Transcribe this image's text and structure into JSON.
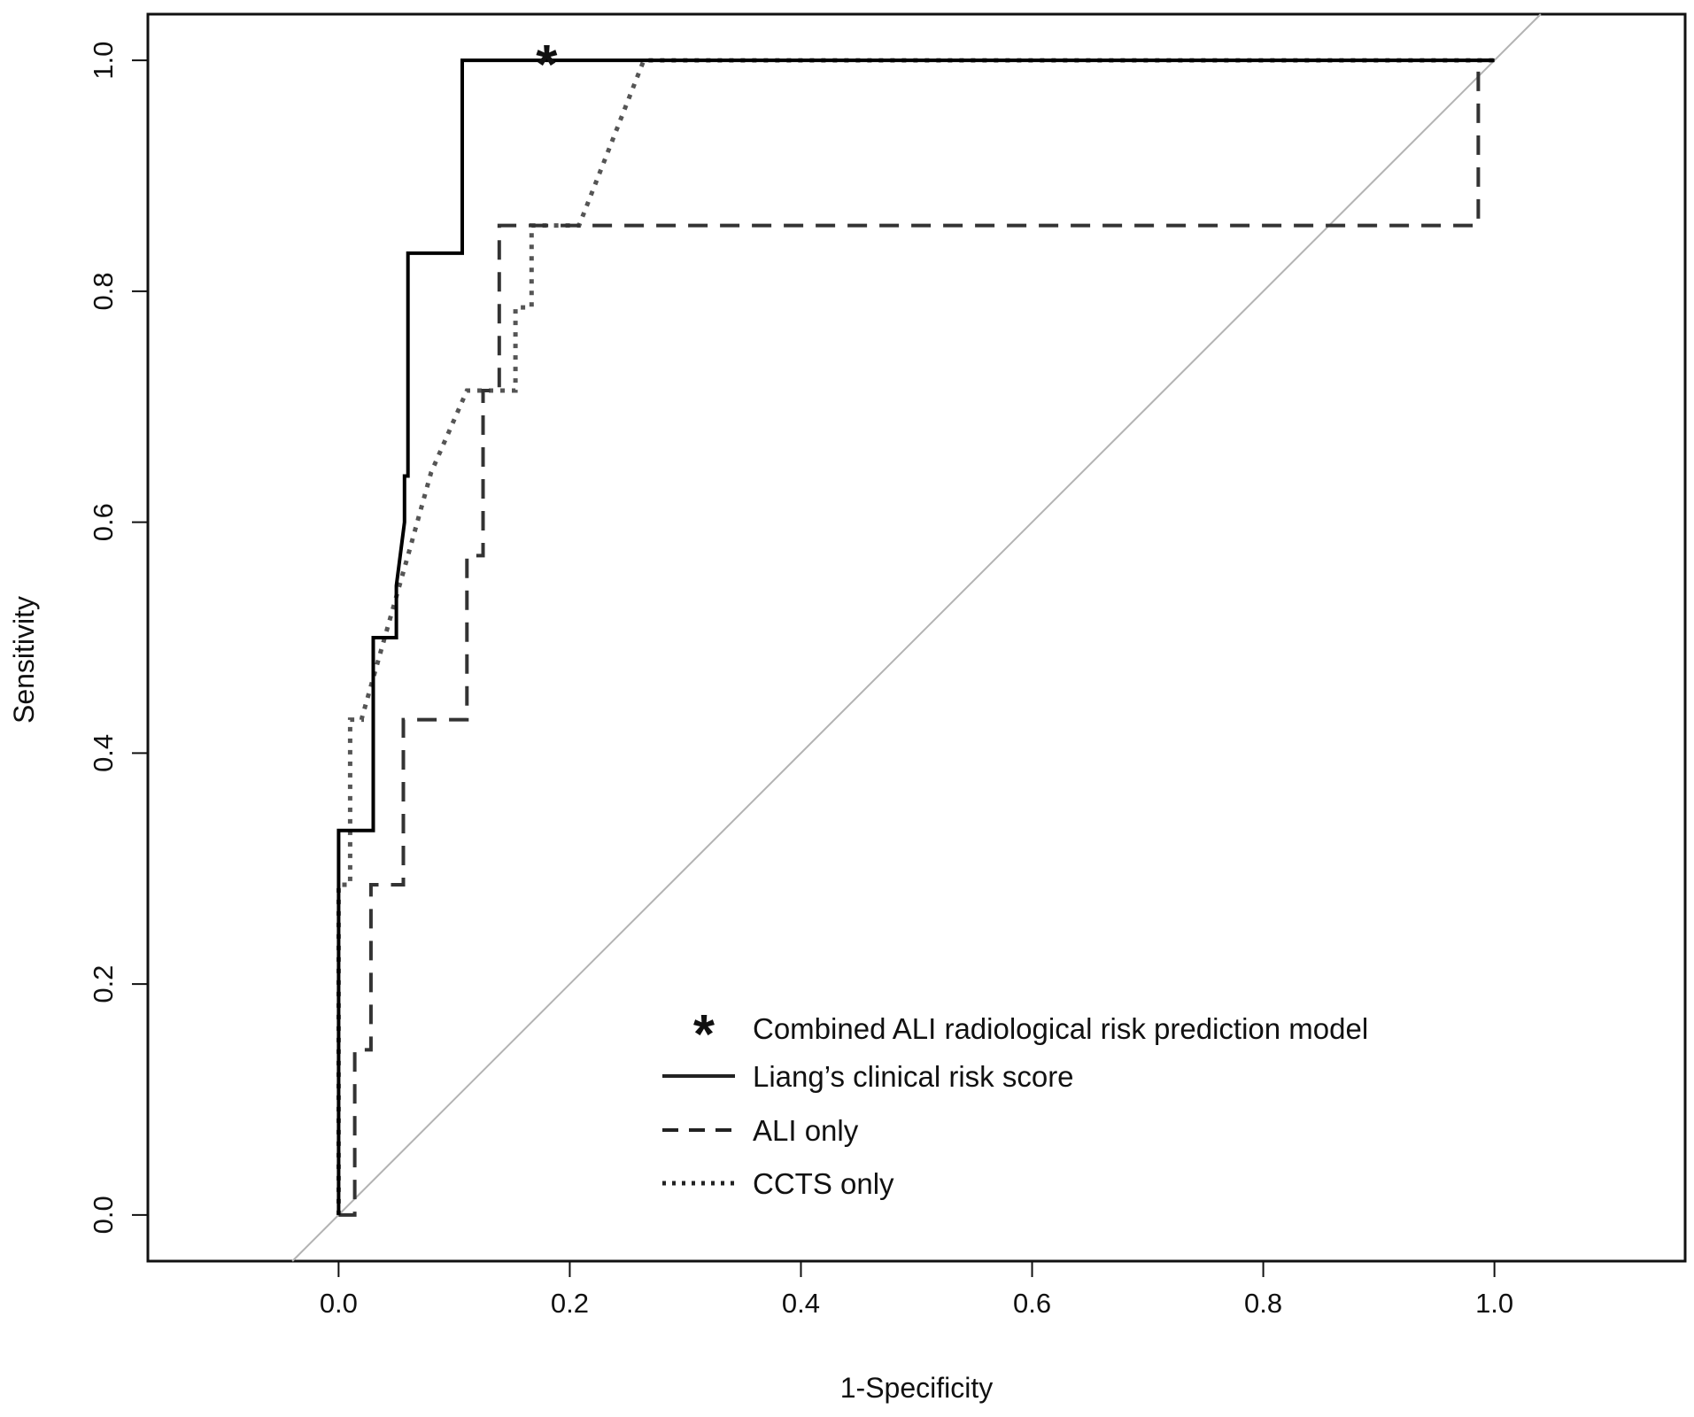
{
  "chart_data": {
    "type": "line",
    "title": "",
    "xlabel": "1-Specificity",
    "ylabel": "Sensitivity",
    "xlim": [
      -0.165,
      1.165
    ],
    "ylim": [
      -0.04,
      1.04
    ],
    "xticks": [
      0.0,
      0.2,
      0.4,
      0.6,
      0.8,
      1.0
    ],
    "yticks": [
      0.0,
      0.2,
      0.4,
      0.6,
      0.8,
      1.0
    ],
    "xtick_labels": [
      "0.0",
      "0.2",
      "0.4",
      "0.6",
      "0.8",
      "1.0"
    ],
    "ytick_labels": [
      "0.0",
      "0.2",
      "0.4",
      "0.6",
      "0.8",
      "1.0"
    ],
    "grid": false,
    "legend_position": "bottom-right",
    "reference_line": {
      "x": [
        -0.04,
        1.04
      ],
      "y": [
        -0.04,
        1.04
      ],
      "color": "#b3b3b3"
    },
    "series": [
      {
        "name": "Liang’s clinical risk score",
        "style": "solid",
        "color": "#000000",
        "x": [
          0.0,
          0.0,
          0.03,
          0.03,
          0.05,
          0.05,
          0.057,
          0.057,
          0.06,
          0.06,
          0.107,
          0.107,
          1.0
        ],
        "y": [
          0.0,
          0.333,
          0.333,
          0.5,
          0.5,
          0.545,
          0.6,
          0.64,
          0.64,
          0.833,
          0.833,
          1.0,
          1.0
        ]
      },
      {
        "name": "ALI only",
        "style": "dashed",
        "color": "#333333",
        "x": [
          0.0,
          0.014,
          0.014,
          0.028,
          0.028,
          0.056,
          0.056,
          0.111,
          0.111,
          0.125,
          0.125,
          0.139,
          0.139,
          0.986,
          0.986,
          1.0
        ],
        "y": [
          0.0,
          0.0,
          0.143,
          0.143,
          0.286,
          0.286,
          0.429,
          0.429,
          0.571,
          0.571,
          0.714,
          0.714,
          0.857,
          0.857,
          1.0,
          1.0
        ]
      },
      {
        "name": "CCTS only",
        "style": "dotted",
        "color": "#555555",
        "x": [
          0.0,
          0.0,
          0.01,
          0.01,
          0.02,
          0.02,
          0.06,
          0.08,
          0.111,
          0.153,
          0.153,
          0.167,
          0.167,
          0.208,
          0.264,
          1.0
        ],
        "y": [
          0.0,
          0.286,
          0.286,
          0.429,
          0.429,
          0.43,
          0.571,
          0.643,
          0.714,
          0.714,
          0.786,
          0.786,
          0.857,
          0.857,
          1.0,
          1.0
        ]
      }
    ],
    "markers": [
      {
        "name": "Combined ALI radiological risk prediction model",
        "symbol": "*",
        "x": 0.18,
        "y": 1.0
      }
    ],
    "legend": [
      {
        "label": "Combined ALI radiological risk prediction model",
        "kind": "marker"
      },
      {
        "label": "Liang’s clinical risk score",
        "kind": "solid"
      },
      {
        "label": "ALI only",
        "kind": "dashed"
      },
      {
        "label": "CCTS only",
        "kind": "dotted"
      }
    ]
  }
}
